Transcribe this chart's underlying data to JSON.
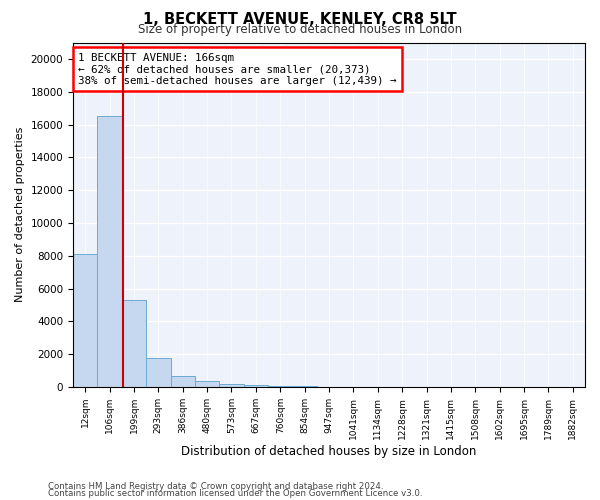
{
  "title1": "1, BECKETT AVENUE, KENLEY, CR8 5LT",
  "title2": "Size of property relative to detached houses in London",
  "xlabel": "Distribution of detached houses by size in London",
  "ylabel": "Number of detached properties",
  "bar_labels": [
    "12sqm",
    "106sqm",
    "199sqm",
    "293sqm",
    "386sqm",
    "480sqm",
    "573sqm",
    "667sqm",
    "760sqm",
    "854sqm",
    "947sqm",
    "1041sqm",
    "1134sqm",
    "1228sqm",
    "1321sqm",
    "1415sqm",
    "1508sqm",
    "1602sqm",
    "1695sqm",
    "1789sqm",
    "1882sqm"
  ],
  "bar_values": [
    8100,
    16500,
    5300,
    1800,
    650,
    350,
    200,
    100,
    60,
    40,
    30,
    20,
    15,
    10,
    8,
    5,
    4,
    3,
    2,
    2,
    1
  ],
  "bar_color": "#c5d8f0",
  "bar_edge_color": "#6aabd2",
  "annotation_text": "1 BECKETT AVENUE: 166sqm\n← 62% of detached houses are smaller (20,373)\n38% of semi-detached houses are larger (12,439) →",
  "vline_x_index": 1.55,
  "vline_color": "#cc0000",
  "ylim": [
    0,
    21000
  ],
  "yticks": [
    0,
    2000,
    4000,
    6000,
    8000,
    10000,
    12000,
    14000,
    16000,
    18000,
    20000
  ],
  "footer1": "Contains HM Land Registry data © Crown copyright and database right 2024.",
  "footer2": "Contains public sector information licensed under the Open Government Licence v3.0.",
  "plot_bg_color": "#eef2fb"
}
